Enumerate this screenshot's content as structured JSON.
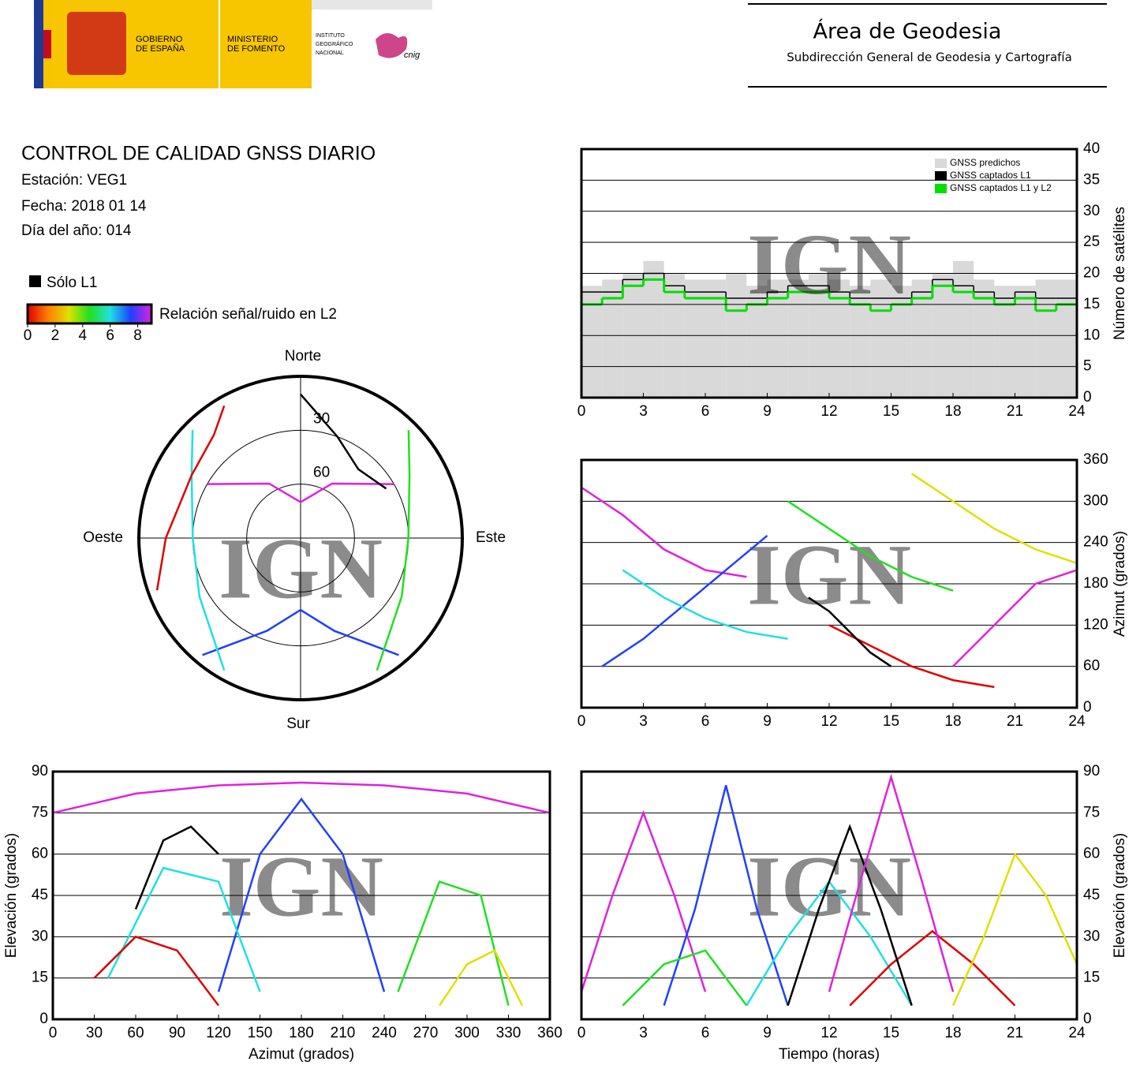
{
  "header": {
    "logos": {
      "gobierno": [
        "GOBIERNO",
        "DE ESPAÑA"
      ],
      "ministerio": [
        "MINISTERIO",
        "DE FOMENTO"
      ],
      "instituto": [
        "INSTITUTO",
        "GEOGRÁFICO",
        "NACIONAL"
      ],
      "cnig": "cnig"
    },
    "area": "Área de Geodesia",
    "subdireccion": "Subdirección General de Geodesia y Cartografía"
  },
  "report": {
    "title": "CONTROL DE CALIDAD GNSS DIARIO",
    "station": "Estación: VEG1",
    "date": "Fecha: 2018 01 14",
    "doy": "Día del año: 014"
  },
  "snr_legend": {
    "solo_l1": "Sólo L1",
    "label": "Relación señal/ruido en L2",
    "lim": [
      0,
      9
    ],
    "ticks": [
      0,
      2,
      4,
      6,
      8
    ],
    "colors": [
      "#e00000",
      "#ff8000",
      "#e0e000",
      "#20e020",
      "#20e0e0",
      "#2040ff",
      "#e020e0"
    ]
  },
  "chart_data": [
    {
      "type": "step",
      "watermark": "IGN",
      "y_label": "Número de satélites",
      "y_axis_position": "right",
      "xlim": [
        0,
        24
      ],
      "xticks": [
        0,
        3,
        6,
        9,
        12,
        15,
        18,
        21,
        24
      ],
      "ylim": [
        0,
        40
      ],
      "yticks": [
        0,
        5,
        10,
        15,
        20,
        25,
        30,
        35,
        40
      ],
      "grid": true,
      "legend": "upper right",
      "x": [
        0,
        1,
        2,
        3,
        4,
        5,
        6,
        7,
        8,
        9,
        10,
        11,
        12,
        13,
        14,
        15,
        16,
        17,
        18,
        19,
        20,
        21,
        22,
        23
      ],
      "series": [
        {
          "name": "GNSS predichos",
          "color": "#d9d9d9",
          "fill": true,
          "values": [
            18,
            19,
            20,
            22,
            20,
            19,
            19,
            20,
            18,
            19,
            19,
            20,
            19,
            18,
            19,
            18,
            19,
            20,
            22,
            19,
            18,
            18,
            19,
            19
          ]
        },
        {
          "name": "GNSS captados L1",
          "color": "#000000",
          "fill": false,
          "values": [
            17,
            17,
            19,
            20,
            18,
            17,
            17,
            16,
            16,
            17,
            18,
            18,
            17,
            16,
            16,
            16,
            17,
            19,
            18,
            17,
            16,
            17,
            16,
            16
          ]
        },
        {
          "name": "GNSS captados L1 y L2",
          "color": "#00e000",
          "fill": false,
          "values": [
            15,
            16,
            18,
            19,
            17,
            16,
            16,
            14,
            15,
            16,
            17,
            17,
            16,
            15,
            14,
            15,
            16,
            18,
            17,
            16,
            15,
            16,
            14,
            15
          ]
        }
      ]
    },
    {
      "type": "polar",
      "watermark": "IGN",
      "directions": {
        "north": "Norte",
        "south": "Sur",
        "east": "Este",
        "west": "Oeste"
      },
      "rlim": [
        0,
        90
      ],
      "rticks": [
        30,
        60
      ],
      "tracks": [
        {
          "color": "#e020e0",
          "x": [
            300,
            330,
            0,
            30,
            60
          ],
          "values": [
            30,
            55,
            70,
            55,
            30
          ]
        },
        {
          "color": "#2040ff",
          "x": [
            220,
            200,
            180,
            160,
            140
          ],
          "values": [
            5,
            35,
            50,
            35,
            5
          ]
        },
        {
          "color": "#20e0e0",
          "x": [
            315,
            300,
            270,
            240,
            210
          ],
          "values": [
            5,
            20,
            30,
            25,
            5
          ]
        },
        {
          "color": "#20e020",
          "x": [
            45,
            60,
            90,
            120,
            150
          ],
          "values": [
            5,
            20,
            30,
            25,
            5
          ]
        },
        {
          "color": "#e00000",
          "x": [
            330,
            320,
            300,
            270,
            250
          ],
          "values": [
            5,
            15,
            20,
            15,
            5
          ]
        },
        {
          "color": "#000000",
          "x": [
            0,
            20,
            40,
            60
          ],
          "values": [
            10,
            30,
            40,
            35
          ]
        }
      ]
    },
    {
      "type": "line",
      "watermark": "IGN",
      "y_label": "Azimut (grados)",
      "y_axis_position": "right",
      "xlim": [
        0,
        24
      ],
      "xticks": [
        0,
        3,
        6,
        9,
        12,
        15,
        18,
        21,
        24
      ],
      "ylim": [
        0,
        360
      ],
      "yticks": [
        0,
        60,
        120,
        180,
        240,
        300,
        360
      ],
      "grid": true,
      "tracks": [
        {
          "color": "#e020e0",
          "x": [
            0,
            2,
            4,
            6,
            8
          ],
          "values": [
            320,
            280,
            230,
            200,
            190
          ]
        },
        {
          "color": "#2040ff",
          "x": [
            1,
            3,
            5,
            7,
            9
          ],
          "values": [
            60,
            100,
            150,
            200,
            250
          ]
        },
        {
          "color": "#20e0e0",
          "x": [
            2,
            4,
            6,
            8,
            10
          ],
          "values": [
            200,
            160,
            130,
            110,
            100
          ]
        },
        {
          "color": "#20e020",
          "x": [
            10,
            12,
            14,
            16,
            18
          ],
          "values": [
            300,
            260,
            220,
            190,
            170
          ]
        },
        {
          "color": "#e00000",
          "x": [
            12,
            14,
            16,
            18,
            20
          ],
          "values": [
            120,
            90,
            60,
            40,
            30
          ]
        },
        {
          "color": "#000000",
          "x": [
            11,
            12,
            13,
            14,
            15
          ],
          "values": [
            160,
            140,
            110,
            80,
            60
          ]
        },
        {
          "color": "#e0e000",
          "x": [
            16,
            18,
            20,
            22,
            24
          ],
          "values": [
            340,
            300,
            260,
            230,
            210
          ]
        },
        {
          "color": "#e020e0",
          "x": [
            18,
            20,
            22,
            24
          ],
          "values": [
            60,
            120,
            180,
            200
          ]
        }
      ]
    },
    {
      "type": "line",
      "watermark": "IGN",
      "x_label": "Azimut (grados)",
      "y_label": "Elevación (grados)",
      "y_axis_position": "left",
      "xlim": [
        0,
        360
      ],
      "xticks": [
        0,
        30,
        60,
        90,
        120,
        150,
        180,
        210,
        240,
        270,
        300,
        330,
        360
      ],
      "ylim": [
        0,
        90
      ],
      "yticks": [
        0,
        15,
        30,
        45,
        60,
        75,
        90
      ],
      "grid": true,
      "tracks": [
        {
          "color": "#e020e0",
          "x": [
            0,
            60,
            120,
            180,
            240,
            300,
            360
          ],
          "values": [
            75,
            82,
            85,
            86,
            85,
            82,
            75
          ]
        },
        {
          "color": "#2040ff",
          "x": [
            120,
            150,
            180,
            210,
            240
          ],
          "values": [
            10,
            60,
            80,
            60,
            10
          ]
        },
        {
          "color": "#20e0e0",
          "x": [
            40,
            80,
            120,
            150
          ],
          "values": [
            15,
            55,
            50,
            10
          ]
        },
        {
          "color": "#20e020",
          "x": [
            250,
            280,
            310,
            330
          ],
          "values": [
            10,
            50,
            45,
            5
          ]
        },
        {
          "color": "#e00000",
          "x": [
            30,
            60,
            90,
            120
          ],
          "values": [
            15,
            30,
            25,
            5
          ]
        },
        {
          "color": "#000000",
          "x": [
            60,
            80,
            100,
            120
          ],
          "values": [
            40,
            65,
            70,
            60
          ]
        },
        {
          "color": "#e0e000",
          "x": [
            280,
            300,
            320,
            340
          ],
          "values": [
            5,
            20,
            25,
            5
          ]
        }
      ]
    },
    {
      "type": "line",
      "watermark": "IGN",
      "x_label": "Tiempo (horas)",
      "y_label": "Elevación (grados)",
      "y_axis_position": "right",
      "xlim": [
        0,
        24
      ],
      "xticks": [
        0,
        3,
        6,
        9,
        12,
        15,
        18,
        21,
        24
      ],
      "ylim": [
        0,
        90
      ],
      "yticks": [
        0,
        15,
        30,
        45,
        60,
        75,
        90
      ],
      "grid": true,
      "tracks": [
        {
          "color": "#e020e0",
          "x": [
            0,
            1.5,
            3,
            4.5,
            6
          ],
          "values": [
            10,
            45,
            75,
            45,
            10
          ]
        },
        {
          "color": "#2040ff",
          "x": [
            4,
            5.5,
            7,
            8.5,
            10
          ],
          "values": [
            5,
            40,
            85,
            40,
            5
          ]
        },
        {
          "color": "#20e0e0",
          "x": [
            8,
            10,
            12,
            14,
            16
          ],
          "values": [
            5,
            30,
            50,
            30,
            5
          ]
        },
        {
          "color": "#20e020",
          "x": [
            2,
            4,
            6,
            8
          ],
          "values": [
            5,
            20,
            25,
            5
          ]
        },
        {
          "color": "#e00000",
          "x": [
            13,
            15,
            17,
            19,
            21
          ],
          "values": [
            5,
            20,
            32,
            20,
            5
          ]
        },
        {
          "color": "#000000",
          "x": [
            10,
            11.5,
            13,
            14.5,
            16
          ],
          "values": [
            5,
            40,
            70,
            40,
            5
          ]
        },
        {
          "color": "#e0e000",
          "x": [
            18,
            19.5,
            21,
            22.5,
            24
          ],
          "values": [
            5,
            30,
            60,
            45,
            20
          ]
        },
        {
          "color": "#e020e0",
          "x": [
            12,
            13.5,
            15,
            16.5,
            18
          ],
          "values": [
            10,
            50,
            88,
            50,
            10
          ]
        }
      ]
    }
  ]
}
